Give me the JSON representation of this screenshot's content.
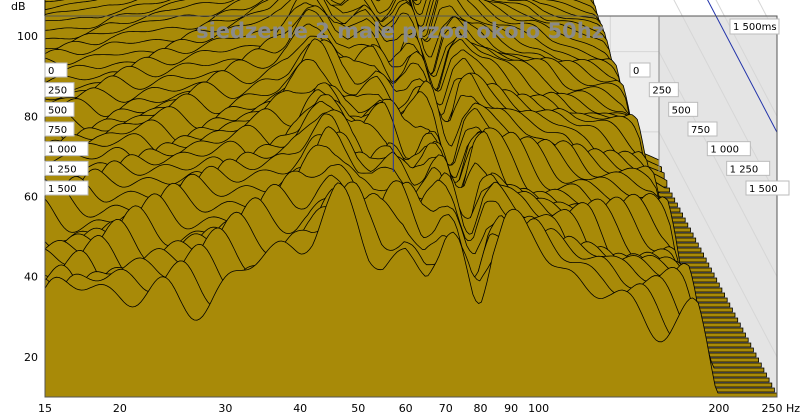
{
  "chart_data": {
    "type": "area",
    "title": "siedzenie 2 male przod okolo 50hz",
    "xlabel": "",
    "ylabel": "",
    "x_unit": "Hz",
    "y_unit": "dB",
    "x_scale": "log",
    "xlim": [
      15,
      250
    ],
    "ylim": [
      10,
      105
    ],
    "x_ticks": [
      {
        "value": 15,
        "label": "15"
      },
      {
        "value": 20,
        "label": "20"
      },
      {
        "value": 30,
        "label": "30"
      },
      {
        "value": 40,
        "label": "40"
      },
      {
        "value": 50,
        "label": "50"
      },
      {
        "value": 60,
        "label": "60"
      },
      {
        "value": 70,
        "label": "70"
      },
      {
        "value": 80,
        "label": "80"
      },
      {
        "value": 90,
        "label": "90"
      },
      {
        "value": 100,
        "label": "100"
      },
      {
        "value": 200,
        "label": "200"
      },
      {
        "value": 250,
        "label": "250 Hz"
      }
    ],
    "y_ticks": [
      {
        "value": 20,
        "label": "20"
      },
      {
        "value": 40,
        "label": "40"
      },
      {
        "value": 60,
        "label": "60"
      },
      {
        "value": 80,
        "label": "80"
      },
      {
        "value": 100,
        "label": "100"
      }
    ],
    "time_unit": "ms",
    "time_max_label": "1 500ms",
    "time_labels": [
      "0",
      "250",
      "500",
      "750",
      "1 000",
      "1 250",
      "1 500"
    ],
    "time_range": [
      0,
      1500
    ],
    "slice_count": 46,
    "cursor": {
      "frequency": 74,
      "level": 76
    },
    "fill_color": "#a88a08",
    "line_color": "#000000",
    "cursor_color": "#2233aa",
    "first_slice": {
      "x": [
        15,
        16,
        17,
        18,
        19,
        20,
        22,
        24,
        26,
        28,
        30,
        33,
        36,
        40,
        42,
        44,
        46,
        48,
        50,
        52,
        55,
        58,
        60,
        62,
        65,
        68,
        70,
        72,
        74,
        76,
        78,
        80,
        84,
        88,
        92,
        96,
        100,
        105,
        110,
        115,
        120,
        125,
        130,
        140,
        150,
        160,
        170,
        180,
        185,
        190,
        200,
        210,
        230,
        250
      ],
      "y": [
        56,
        56.5,
        57,
        57.5,
        58,
        59,
        60,
        61,
        62,
        63,
        64,
        65.5,
        67,
        69.5,
        72,
        76,
        79,
        78.5,
        76,
        72.5,
        71,
        73,
        74,
        72,
        68,
        70,
        73,
        73.5,
        72,
        67,
        62,
        61.5,
        71,
        73.5,
        71,
        69,
        68,
        66,
        64.5,
        63.5,
        62.5,
        62,
        61.5,
        59,
        58,
        57,
        56,
        55,
        53,
        46,
        30,
        20,
        15,
        13
      ]
    }
  }
}
